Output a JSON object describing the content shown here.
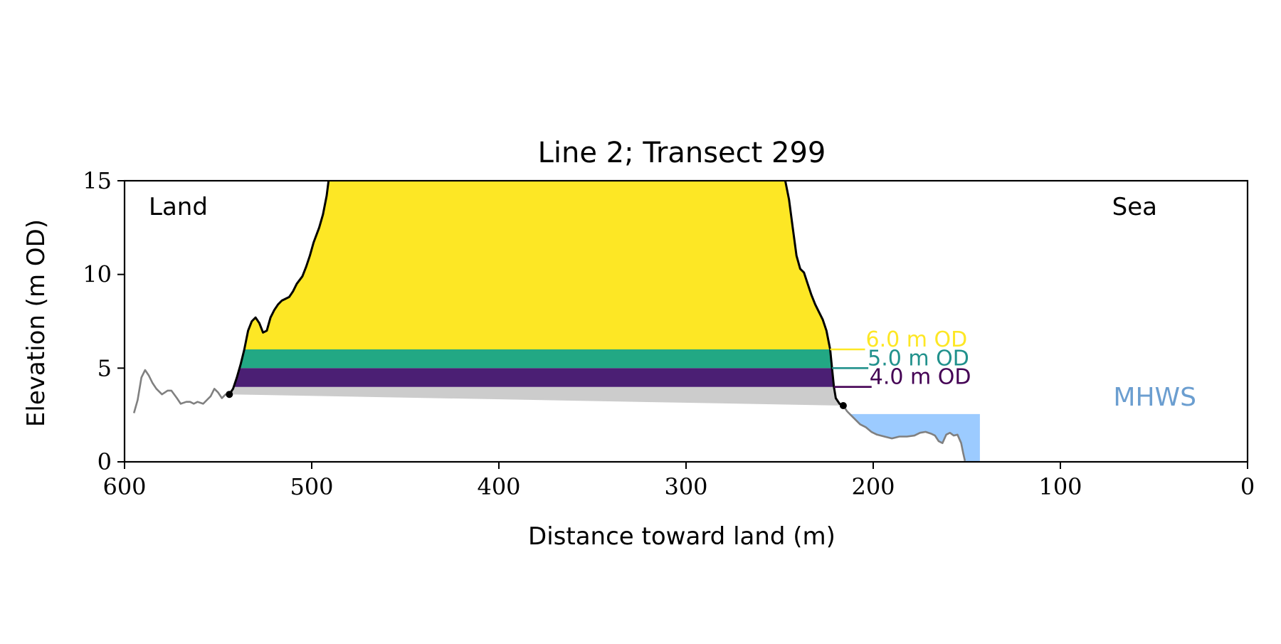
{
  "chart_data": {
    "type": "area",
    "title": "Line 2; Transect 299",
    "xlabel": "Distance toward land (m)",
    "ylabel": "Elevation (m OD)",
    "xlim": [
      600,
      0
    ],
    "ylim": [
      0,
      15
    ],
    "x_ticks": [
      600,
      500,
      400,
      300,
      200,
      100,
      0
    ],
    "y_ticks": [
      0,
      5,
      10,
      15
    ],
    "grid": false,
    "annotations": {
      "land": "Land",
      "sea": "Sea",
      "mhws": "MHWS"
    },
    "mhws": {
      "elevation": 2.55,
      "x_from": 212,
      "x_to": 143
    },
    "baseline": {
      "from": [
        544,
        3.6
      ],
      "to": [
        216,
        3.0
      ]
    },
    "endpoints": [
      [
        544,
        3.6
      ],
      [
        216,
        3.0
      ]
    ],
    "levels": [
      {
        "label": "4.0 m OD",
        "elevation": 4.0,
        "color": "#440154"
      },
      {
        "label": "5.0 m OD",
        "elevation": 5.0,
        "color": "#21918c"
      },
      {
        "label": "6.0 m OD",
        "elevation": 6.0,
        "color": "#fde725"
      }
    ],
    "fills": {
      "band_4_to_5": "#4b1f74",
      "band_5_to_6": "#22a884",
      "above_6": "#fde725",
      "below_4": "#cccccc",
      "mhws": "#9ccbff"
    },
    "series": [
      {
        "name": "",
        "color": "#000000",
        "role": "cliff profile",
        "points": [
          [
            544,
            3.6
          ],
          [
            542,
            3.9
          ],
          [
            540,
            4.5
          ],
          [
            538,
            5.2
          ],
          [
            536,
            6.0
          ],
          [
            534,
            7.0
          ],
          [
            532,
            7.5
          ],
          [
            530,
            7.7
          ],
          [
            528,
            7.4
          ],
          [
            526,
            6.9
          ],
          [
            524,
            7.0
          ],
          [
            522,
            7.7
          ],
          [
            520,
            8.1
          ],
          [
            518,
            8.4
          ],
          [
            516,
            8.6
          ],
          [
            514,
            8.7
          ],
          [
            512,
            8.8
          ],
          [
            510,
            9.1
          ],
          [
            508,
            9.5
          ],
          [
            505,
            9.9
          ],
          [
            503,
            10.4
          ],
          [
            501,
            11.0
          ],
          [
            499,
            11.7
          ],
          [
            496,
            12.5
          ],
          [
            494,
            13.2
          ],
          [
            492,
            14.2
          ],
          [
            491,
            15.0
          ]
        ]
      },
      {
        "name": "",
        "color": "#000000",
        "role": "cliff profile",
        "points": [
          [
            247,
            15.0
          ],
          [
            245,
            14.0
          ],
          [
            243,
            12.5
          ],
          [
            241,
            11.0
          ],
          [
            239,
            10.3
          ],
          [
            237,
            10.1
          ],
          [
            235,
            9.5
          ],
          [
            233,
            8.9
          ],
          [
            231,
            8.4
          ],
          [
            229,
            8.0
          ],
          [
            227,
            7.6
          ],
          [
            225,
            7.0
          ],
          [
            223,
            6.0
          ],
          [
            222,
            5.0
          ],
          [
            221,
            4.0
          ],
          [
            220,
            3.4
          ],
          [
            218,
            3.1
          ],
          [
            216,
            3.0
          ]
        ]
      },
      {
        "name": "",
        "color": "#808080",
        "role": "ground profile",
        "points": [
          [
            595,
            2.6
          ],
          [
            593,
            3.3
          ],
          [
            591,
            4.5
          ],
          [
            589,
            4.9
          ],
          [
            587,
            4.6
          ],
          [
            585,
            4.2
          ],
          [
            583,
            3.9
          ],
          [
            580,
            3.6
          ],
          [
            577,
            3.8
          ],
          [
            575,
            3.8
          ],
          [
            572,
            3.4
          ],
          [
            570,
            3.1
          ],
          [
            567,
            3.2
          ],
          [
            565,
            3.2
          ],
          [
            563,
            3.1
          ],
          [
            561,
            3.2
          ],
          [
            558,
            3.1
          ],
          [
            556,
            3.3
          ],
          [
            554,
            3.5
          ],
          [
            552,
            3.9
          ],
          [
            550,
            3.7
          ],
          [
            548,
            3.4
          ],
          [
            546,
            3.6
          ],
          [
            544,
            3.6
          ]
        ]
      },
      {
        "name": "",
        "color": "#808080",
        "role": "ground profile",
        "points": [
          [
            216,
            3.0
          ],
          [
            214,
            2.7
          ],
          [
            212,
            2.5
          ],
          [
            210,
            2.3
          ],
          [
            207,
            2.0
          ],
          [
            204,
            1.85
          ],
          [
            201,
            1.6
          ],
          [
            198,
            1.45
          ],
          [
            194,
            1.35
          ],
          [
            190,
            1.25
          ],
          [
            186,
            1.35
          ],
          [
            182,
            1.35
          ],
          [
            178,
            1.4
          ],
          [
            175,
            1.55
          ],
          [
            172,
            1.6
          ],
          [
            169,
            1.5
          ],
          [
            167,
            1.4
          ],
          [
            165,
            1.1
          ],
          [
            163,
            1.0
          ],
          [
            161,
            1.45
          ],
          [
            159,
            1.55
          ],
          [
            157,
            1.4
          ],
          [
            155,
            1.45
          ],
          [
            153,
            1.0
          ],
          [
            152,
            0.5
          ],
          [
            151,
            0.05
          ]
        ]
      }
    ]
  }
}
